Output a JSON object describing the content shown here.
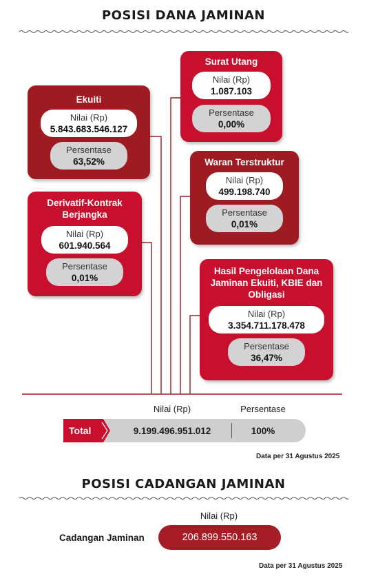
{
  "dana": {
    "title": "POSISI DANA JAMINAN",
    "value_label": "Nilai (Rp)",
    "pct_label": "Persentase",
    "items": [
      {
        "name": "Ekuiti",
        "value": "5.843.683.546.127",
        "pct": "63,52%"
      },
      {
        "name": "Derivatif-Kontrak Berjangka",
        "value": "601.940.564",
        "pct": "0,01%"
      },
      {
        "name": "Surat Utang",
        "value": "1.087.103",
        "pct": "0,00%"
      },
      {
        "name": "Waran Terstruktur",
        "value": "499.198.740",
        "pct": "0,01%"
      },
      {
        "name": "Hasil Pengelolaan Dana Jaminan Ekuiti, KBIE dan Obligasi",
        "value": "3.354.711.178.478",
        "pct": "36,47%"
      }
    ],
    "total": {
      "label": "Total",
      "value": "9.199.496.951.012",
      "pct": "100%"
    },
    "note": "Data per 31 Agustus 2025"
  },
  "cadangan": {
    "title": "POSISI CADANGAN JAMINAN",
    "value_label": "Nilai (Rp)",
    "label": "Cadangan Jaminan",
    "value": "206.899.550.163",
    "note": "Data per 31 Agustus 2025"
  },
  "colors": {
    "card_dark": "#9e1b22",
    "card_bright": "#c8102e",
    "pill_grey": "#d3d3d5",
    "reserve": "#a51c24"
  }
}
